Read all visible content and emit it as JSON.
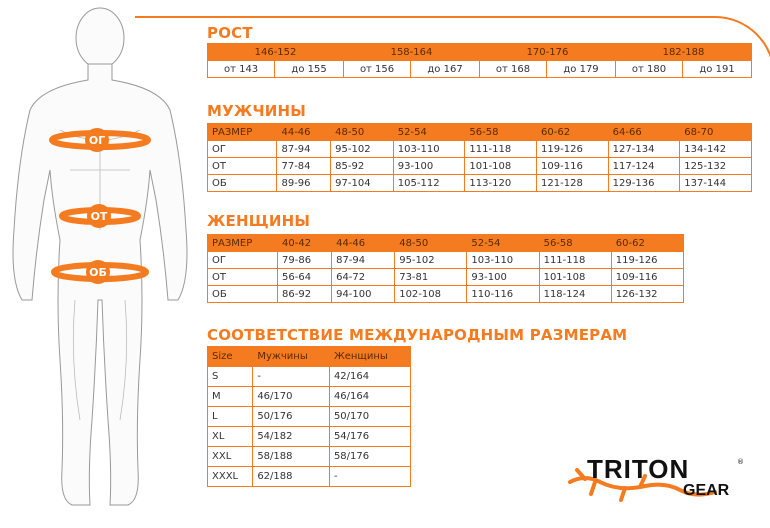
{
  "accent": "#f47b20",
  "figure": {
    "labels": [
      "ОГ",
      "ОТ",
      "ОБ"
    ]
  },
  "height": {
    "title": "РОСТ",
    "ranges": [
      "146-152",
      "158-164",
      "170-176",
      "182-188"
    ],
    "bounds": [
      "от 143",
      "до 155",
      "от 156",
      "до 167",
      "от 168",
      "до 179",
      "от 180",
      "до 191"
    ]
  },
  "men": {
    "title": "МУЖЧИНЫ",
    "header": [
      "РАЗМЕР",
      "44-46",
      "48-50",
      "52-54",
      "56-58",
      "60-62",
      "64-66",
      "68-70"
    ],
    "rows": [
      [
        "ОГ",
        "87-94",
        "95-102",
        "103-110",
        "111-118",
        "119-126",
        "127-134",
        "134-142"
      ],
      [
        "ОТ",
        "77-84",
        "85-92",
        "93-100",
        "101-108",
        "109-116",
        "117-124",
        "125-132"
      ],
      [
        "ОБ",
        "89-96",
        "97-104",
        "105-112",
        "113-120",
        "121-128",
        "129-136",
        "137-144"
      ]
    ]
  },
  "women": {
    "title": "ЖЕНЩИНЫ",
    "header": [
      "РАЗМЕР",
      "40-42",
      "44-46",
      "48-50",
      "52-54",
      "56-58",
      "60-62"
    ],
    "rows": [
      [
        "ОГ",
        "79-86",
        "87-94",
        "95-102",
        "103-110",
        "111-118",
        "119-126"
      ],
      [
        "ОТ",
        "56-64",
        "64-72",
        "73-81",
        "93-100",
        "101-108",
        "109-116"
      ],
      [
        "ОБ",
        "86-92",
        "94-100",
        "102-108",
        "110-116",
        "118-124",
        "126-132"
      ]
    ]
  },
  "intl": {
    "title": "СООТВЕТСТВИЕ МЕЖДУНАРОДНЫМ РАЗМЕРАМ",
    "header": [
      "Size",
      "Мужчины",
      "Женщины"
    ],
    "rows": [
      [
        "S",
        "-",
        "42/164"
      ],
      [
        "M",
        "46/170",
        "46/164"
      ],
      [
        "L",
        "50/176",
        "50/170"
      ],
      [
        "XL",
        "54/182",
        "54/176"
      ],
      [
        "XXL",
        "58/188",
        "58/176"
      ],
      [
        "XXXL",
        "62/188",
        "-"
      ]
    ]
  },
  "logo": {
    "name": "TRITON",
    "sub": "GEAR",
    "mark": "®"
  }
}
